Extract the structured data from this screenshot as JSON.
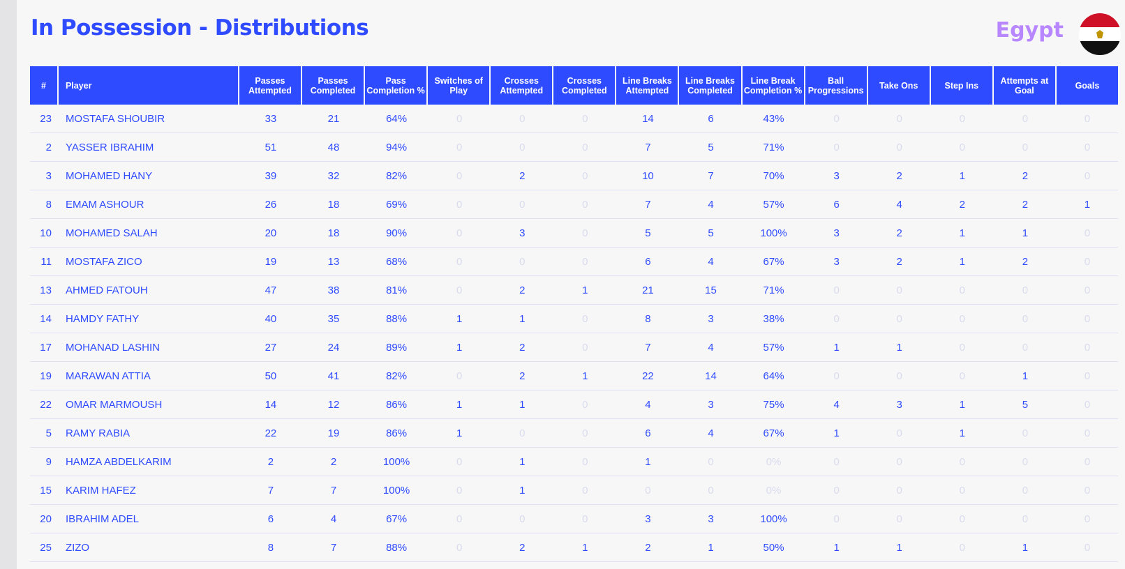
{
  "header": {
    "title": "In Possession - Distributions",
    "team": "Egypt"
  },
  "colors": {
    "accent": "#2f4bff",
    "team_name": "#b887ff",
    "zero_value": "#d9dbec",
    "flag": [
      "#ce1126",
      "#ffffff",
      "#111111"
    ]
  },
  "icons": {
    "flag": "egypt-flag-icon"
  },
  "table": {
    "columns": [
      "#",
      "Player",
      "Passes Attempted",
      "Passes Completed",
      "Pass Completion %",
      "Switches of Play",
      "Crosses Attempted",
      "Crosses Completed",
      "Line Breaks Attempted",
      "Line Breaks Completed",
      "Line Break Completion %",
      "Ball Progressions",
      "Take Ons",
      "Step Ins",
      "Attempts at Goal",
      "Goals"
    ],
    "rows": [
      [
        "23",
        "MOSTAFA SHOUBIR",
        "33",
        "21",
        "64%",
        "0",
        "0",
        "0",
        "14",
        "6",
        "43%",
        "0",
        "0",
        "0",
        "0",
        "0"
      ],
      [
        "2",
        "YASSER IBRAHIM",
        "51",
        "48",
        "94%",
        "0",
        "0",
        "0",
        "7",
        "5",
        "71%",
        "0",
        "0",
        "0",
        "0",
        "0"
      ],
      [
        "3",
        "MOHAMED HANY",
        "39",
        "32",
        "82%",
        "0",
        "2",
        "0",
        "10",
        "7",
        "70%",
        "3",
        "2",
        "1",
        "2",
        "0"
      ],
      [
        "8",
        "EMAM ASHOUR",
        "26",
        "18",
        "69%",
        "0",
        "0",
        "0",
        "7",
        "4",
        "57%",
        "6",
        "4",
        "2",
        "2",
        "1"
      ],
      [
        "10",
        "MOHAMED SALAH",
        "20",
        "18",
        "90%",
        "0",
        "3",
        "0",
        "5",
        "5",
        "100%",
        "3",
        "2",
        "1",
        "1",
        "0"
      ],
      [
        "11",
        "MOSTAFA ZICO",
        "19",
        "13",
        "68%",
        "0",
        "0",
        "0",
        "6",
        "4",
        "67%",
        "3",
        "2",
        "1",
        "2",
        "0"
      ],
      [
        "13",
        "AHMED FATOUH",
        "47",
        "38",
        "81%",
        "0",
        "2",
        "1",
        "21",
        "15",
        "71%",
        "0",
        "0",
        "0",
        "0",
        "0"
      ],
      [
        "14",
        "HAMDY FATHY",
        "40",
        "35",
        "88%",
        "1",
        "1",
        "0",
        "8",
        "3",
        "38%",
        "0",
        "0",
        "0",
        "0",
        "0"
      ],
      [
        "17",
        "MOHANAD LASHIN",
        "27",
        "24",
        "89%",
        "1",
        "2",
        "0",
        "7",
        "4",
        "57%",
        "1",
        "1",
        "0",
        "0",
        "0"
      ],
      [
        "19",
        "MARAWAN ATTIA",
        "50",
        "41",
        "82%",
        "0",
        "2",
        "1",
        "22",
        "14",
        "64%",
        "0",
        "0",
        "0",
        "1",
        "0"
      ],
      [
        "22",
        "OMAR MARMOUSH",
        "14",
        "12",
        "86%",
        "1",
        "1",
        "0",
        "4",
        "3",
        "75%",
        "4",
        "3",
        "1",
        "5",
        "0"
      ],
      [
        "5",
        "RAMY RABIA",
        "22",
        "19",
        "86%",
        "1",
        "0",
        "0",
        "6",
        "4",
        "67%",
        "1",
        "0",
        "1",
        "0",
        "0"
      ],
      [
        "9",
        "HAMZA ABDELKARIM",
        "2",
        "2",
        "100%",
        "0",
        "1",
        "0",
        "1",
        "0",
        "0%",
        "0",
        "0",
        "0",
        "0",
        "0"
      ],
      [
        "15",
        "KARIM HAFEZ",
        "7",
        "7",
        "100%",
        "0",
        "1",
        "0",
        "0",
        "0",
        "0%",
        "0",
        "0",
        "0",
        "0",
        "0"
      ],
      [
        "20",
        "IBRAHIM ADEL",
        "6",
        "4",
        "67%",
        "0",
        "0",
        "0",
        "3",
        "3",
        "100%",
        "0",
        "0",
        "0",
        "0",
        "0"
      ],
      [
        "25",
        "ZIZO",
        "8",
        "7",
        "88%",
        "0",
        "2",
        "1",
        "2",
        "1",
        "50%",
        "1",
        "1",
        "0",
        "1",
        "0"
      ]
    ]
  }
}
